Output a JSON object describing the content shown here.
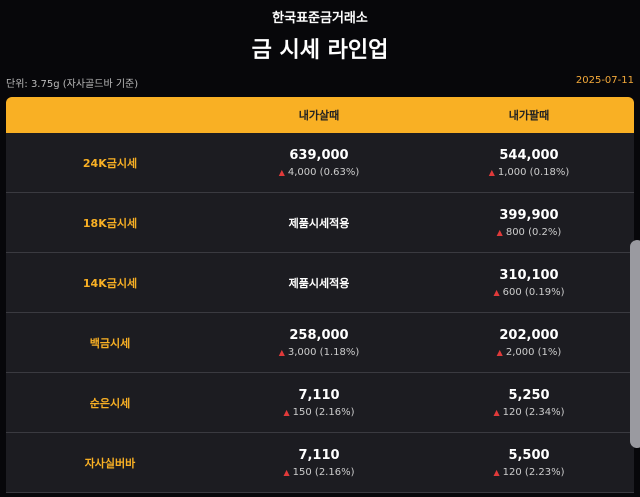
{
  "header": {
    "brand": "한국표준금거래소",
    "title": "금 시세 라인업",
    "unit": "단위: 3.75g (자사골드바 기준)",
    "date": "2025-07-11"
  },
  "table": {
    "columns": [
      "",
      "내가살때",
      "내가팔때"
    ],
    "rows": [
      {
        "label": "24K금시세",
        "buy": {
          "price": "639,000",
          "change": "4,000 (0.63%)"
        },
        "sell": {
          "price": "544,000",
          "change": "1,000 (0.18%)"
        }
      },
      {
        "label": "18K금시세",
        "buy": {
          "note": "제품시세적용"
        },
        "sell": {
          "price": "399,900",
          "change": "800 (0.2%)"
        }
      },
      {
        "label": "14K금시세",
        "buy": {
          "note": "제품시세적용"
        },
        "sell": {
          "price": "310,100",
          "change": "600 (0.19%)"
        }
      },
      {
        "label": "백금시세",
        "buy": {
          "price": "258,000",
          "change": "3,000 (1.18%)"
        },
        "sell": {
          "price": "202,000",
          "change": "2,000 (1%)"
        }
      },
      {
        "label": "순은시세",
        "buy": {
          "price": "7,110",
          "change": "150 (2.16%)"
        },
        "sell": {
          "price": "5,250",
          "change": "120 (2.34%)"
        }
      },
      {
        "label": "자사실버바",
        "buy": {
          "price": "7,110",
          "change": "150 (2.16%)"
        },
        "sell": {
          "price": "5,500",
          "change": "120 (2.23%)"
        }
      }
    ]
  },
  "colors": {
    "accent": "#f9b024",
    "up": "#e03a3a"
  },
  "icons": {
    "change": "triangle-up-icon"
  }
}
